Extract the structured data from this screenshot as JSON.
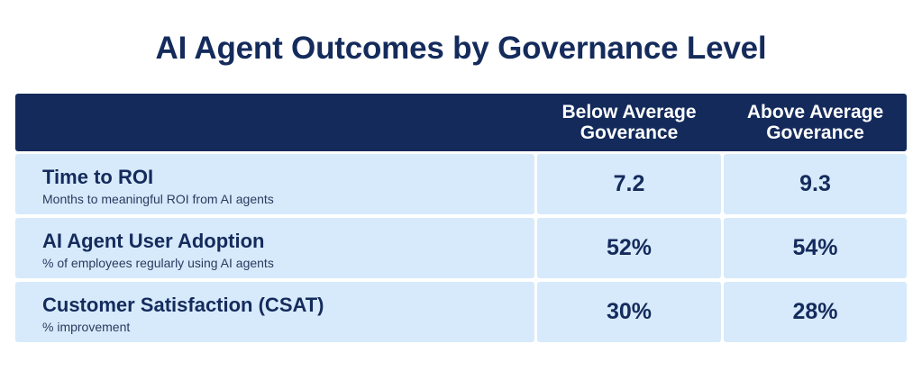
{
  "chart_data": {
    "type": "table",
    "title": "AI Agent Outcomes by Governance Level",
    "columns": [
      {
        "line1": "Below Average",
        "line2": "Goverance"
      },
      {
        "line1": "Above Average",
        "line2": "Goverance"
      }
    ],
    "rows": [
      {
        "title": "Time to ROI",
        "subtitle": "Months to meaningful ROI from AI agents",
        "values": [
          "7.2",
          "9.3"
        ]
      },
      {
        "title": "AI Agent User Adoption",
        "subtitle": "% of employees regularly using AI agents",
        "values": [
          "52%",
          "54%"
        ]
      },
      {
        "title": "Customer Satisfaction (CSAT)",
        "subtitle": "% improvement",
        "values": [
          "30%",
          "28%"
        ]
      }
    ],
    "colors": {
      "header_background": "#132a5b",
      "cell_background": "#d7eafb",
      "text": "#142b5c"
    }
  }
}
